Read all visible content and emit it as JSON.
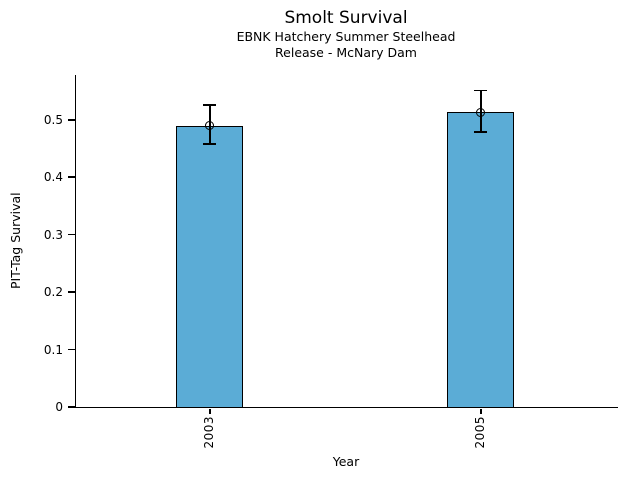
{
  "chart_data": {
    "type": "bar",
    "title": "Smolt Survival",
    "subtitle_line1": "EBNK Hatchery Summer Steelhead",
    "subtitle_line2": "Release - McNary Dam",
    "xlabel": "Year",
    "ylabel": "PIT-Tag Survival",
    "categories": [
      "2003",
      "2005"
    ],
    "values": [
      0.49,
      0.513
    ],
    "error_low": [
      0.458,
      0.479
    ],
    "error_high": [
      0.526,
      0.551
    ],
    "ytick_values": [
      0,
      0.1,
      0.2,
      0.3,
      0.4,
      0.5
    ],
    "ytick_labels": [
      "0",
      "0.1",
      "0.2",
      "0.3",
      "0.4",
      "0.5"
    ],
    "ylim": [
      0,
      0.578
    ],
    "grid": "off",
    "legend": "none",
    "bar_color": "#5BACD6",
    "bar_edge_color": "#000000",
    "axis_color": "#000000",
    "bar_centers_frac": [
      0.247,
      0.747
    ],
    "bar_width_frac": 0.124
  }
}
